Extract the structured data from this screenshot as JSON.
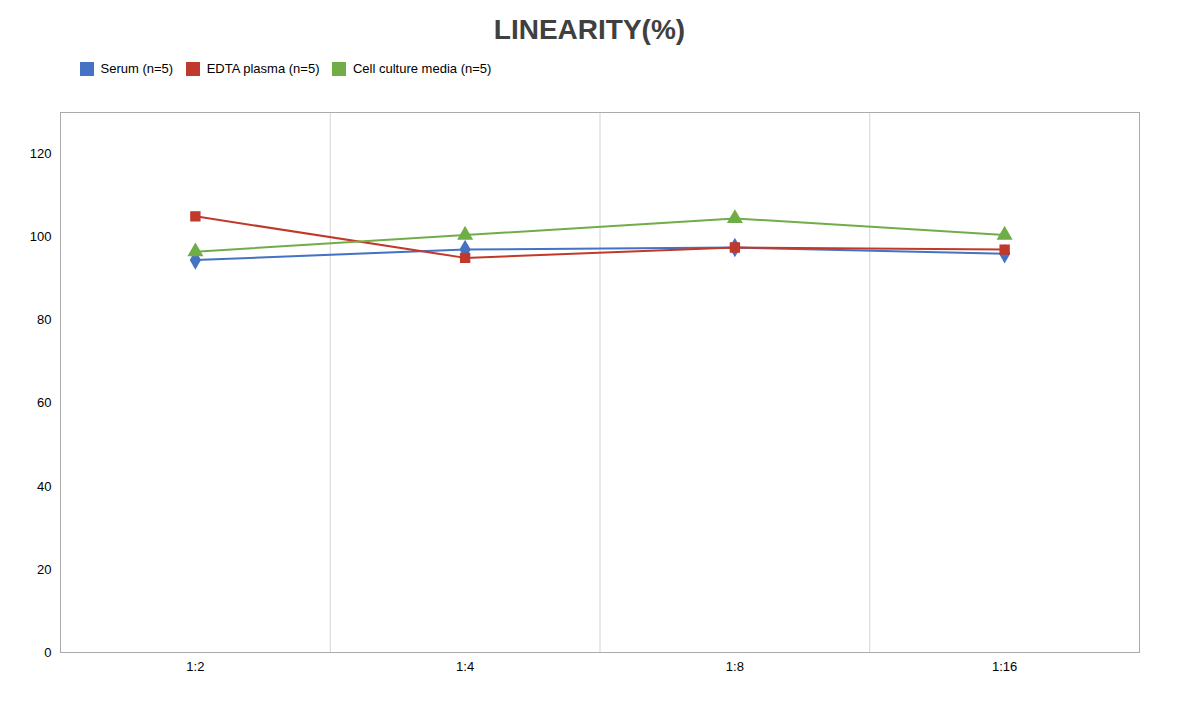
{
  "chart_data": {
    "type": "line",
    "title": "LINEARITY(%)",
    "categories": [
      "1:2",
      "1:4",
      "1:8",
      "1:16"
    ],
    "series": [
      {
        "name": "Serum (n=5)",
        "color": "#4472C4",
        "marker": "diamond",
        "values": [
          94.5,
          97.0,
          97.5,
          96.0
        ]
      },
      {
        "name": "EDTA plasma (n=5)",
        "color": "#C0392B",
        "marker": "square",
        "values": [
          105.0,
          95.0,
          97.5,
          97.0
        ]
      },
      {
        "name": "Cell culture media (n=5)",
        "color": "#70AD47",
        "marker": "triangle",
        "values": [
          96.5,
          100.5,
          104.5,
          100.5
        ]
      }
    ],
    "ylim": [
      0,
      130
    ],
    "yticks": [
      0,
      20,
      40,
      60,
      80,
      100,
      120
    ],
    "grid": true
  }
}
